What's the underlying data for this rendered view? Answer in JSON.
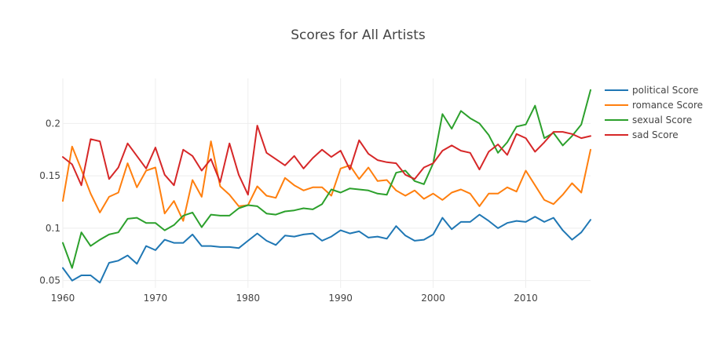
{
  "chart_data": {
    "type": "line",
    "title": "Scores for All Artists",
    "xlabel": "",
    "ylabel": "",
    "xlim": [
      1960,
      2017
    ],
    "ylim": [
      0.043,
      0.243
    ],
    "x_ticks": [
      1960,
      1970,
      1980,
      1990,
      2000,
      2010
    ],
    "y_ticks": [
      0.05,
      0.1,
      0.15,
      0.2
    ],
    "y_tick_labels": [
      "0.05",
      "0.1",
      "0.15",
      "0.2"
    ],
    "grid": true,
    "legend_position": "top-right",
    "x": [
      1960,
      1961,
      1962,
      1963,
      1964,
      1965,
      1966,
      1967,
      1968,
      1969,
      1970,
      1971,
      1972,
      1973,
      1974,
      1975,
      1976,
      1977,
      1978,
      1979,
      1980,
      1981,
      1982,
      1983,
      1984,
      1985,
      1986,
      1987,
      1988,
      1989,
      1990,
      1991,
      1992,
      1993,
      1994,
      1995,
      1996,
      1997,
      1998,
      1999,
      2000,
      2001,
      2002,
      2003,
      2004,
      2005,
      2006,
      2007,
      2008,
      2009,
      2010,
      2011,
      2012,
      2013,
      2014,
      2015,
      2016,
      2017
    ],
    "series": [
      {
        "name": "political Score",
        "color": "#1f77b4",
        "values": [
          0.062,
          0.05,
          0.055,
          0.055,
          0.048,
          0.067,
          0.069,
          0.074,
          0.066,
          0.083,
          0.079,
          0.089,
          0.086,
          0.086,
          0.094,
          0.083,
          0.083,
          0.082,
          0.082,
          0.081,
          0.088,
          0.095,
          0.088,
          0.084,
          0.093,
          0.092,
          0.094,
          0.095,
          0.088,
          0.092,
          0.098,
          0.095,
          0.097,
          0.091,
          0.092,
          0.09,
          0.102,
          0.093,
          0.088,
          0.089,
          0.094,
          0.11,
          0.099,
          0.106,
          0.106,
          0.113,
          0.107,
          0.1,
          0.105,
          0.107,
          0.106,
          0.111,
          0.106,
          0.11,
          0.098,
          0.089,
          0.096,
          0.108
        ]
      },
      {
        "name": "romance Score",
        "color": "#ff7f0e",
        "values": [
          0.126,
          0.178,
          0.156,
          0.133,
          0.115,
          0.13,
          0.134,
          0.162,
          0.139,
          0.155,
          0.158,
          0.114,
          0.126,
          0.107,
          0.146,
          0.13,
          0.183,
          0.14,
          0.132,
          0.121,
          0.122,
          0.14,
          0.131,
          0.129,
          0.148,
          0.141,
          0.136,
          0.139,
          0.139,
          0.131,
          0.157,
          0.16,
          0.147,
          0.158,
          0.145,
          0.146,
          0.136,
          0.131,
          0.136,
          0.128,
          0.133,
          0.127,
          0.134,
          0.137,
          0.133,
          0.121,
          0.133,
          0.133,
          0.139,
          0.135,
          0.155,
          0.141,
          0.127,
          0.123,
          0.132,
          0.143,
          0.134,
          0.175
        ]
      },
      {
        "name": "sexual Score",
        "color": "#2ca02c",
        "values": [
          0.086,
          0.062,
          0.096,
          0.083,
          0.089,
          0.094,
          0.096,
          0.109,
          0.11,
          0.105,
          0.105,
          0.098,
          0.103,
          0.112,
          0.115,
          0.101,
          0.113,
          0.112,
          0.112,
          0.119,
          0.122,
          0.121,
          0.114,
          0.113,
          0.116,
          0.117,
          0.119,
          0.118,
          0.123,
          0.137,
          0.134,
          0.138,
          0.137,
          0.136,
          0.133,
          0.132,
          0.153,
          0.155,
          0.145,
          0.142,
          0.162,
          0.209,
          0.195,
          0.212,
          0.205,
          0.2,
          0.189,
          0.172,
          0.182,
          0.197,
          0.199,
          0.217,
          0.186,
          0.191,
          0.179,
          0.188,
          0.199,
          0.232
        ]
      },
      {
        "name": "sad Score",
        "color": "#d62728",
        "values": [
          0.168,
          0.161,
          0.141,
          0.185,
          0.183,
          0.147,
          0.158,
          0.181,
          0.169,
          0.157,
          0.177,
          0.151,
          0.141,
          0.175,
          0.169,
          0.155,
          0.166,
          0.144,
          0.181,
          0.151,
          0.132,
          0.198,
          0.172,
          0.166,
          0.16,
          0.169,
          0.157,
          0.167,
          0.175,
          0.168,
          0.174,
          0.156,
          0.184,
          0.171,
          0.165,
          0.163,
          0.162,
          0.151,
          0.147,
          0.158,
          0.162,
          0.174,
          0.179,
          0.174,
          0.172,
          0.156,
          0.173,
          0.18,
          0.17,
          0.19,
          0.186,
          0.173,
          0.182,
          0.192,
          0.192,
          0.19,
          0.186,
          0.188
        ]
      }
    ]
  }
}
